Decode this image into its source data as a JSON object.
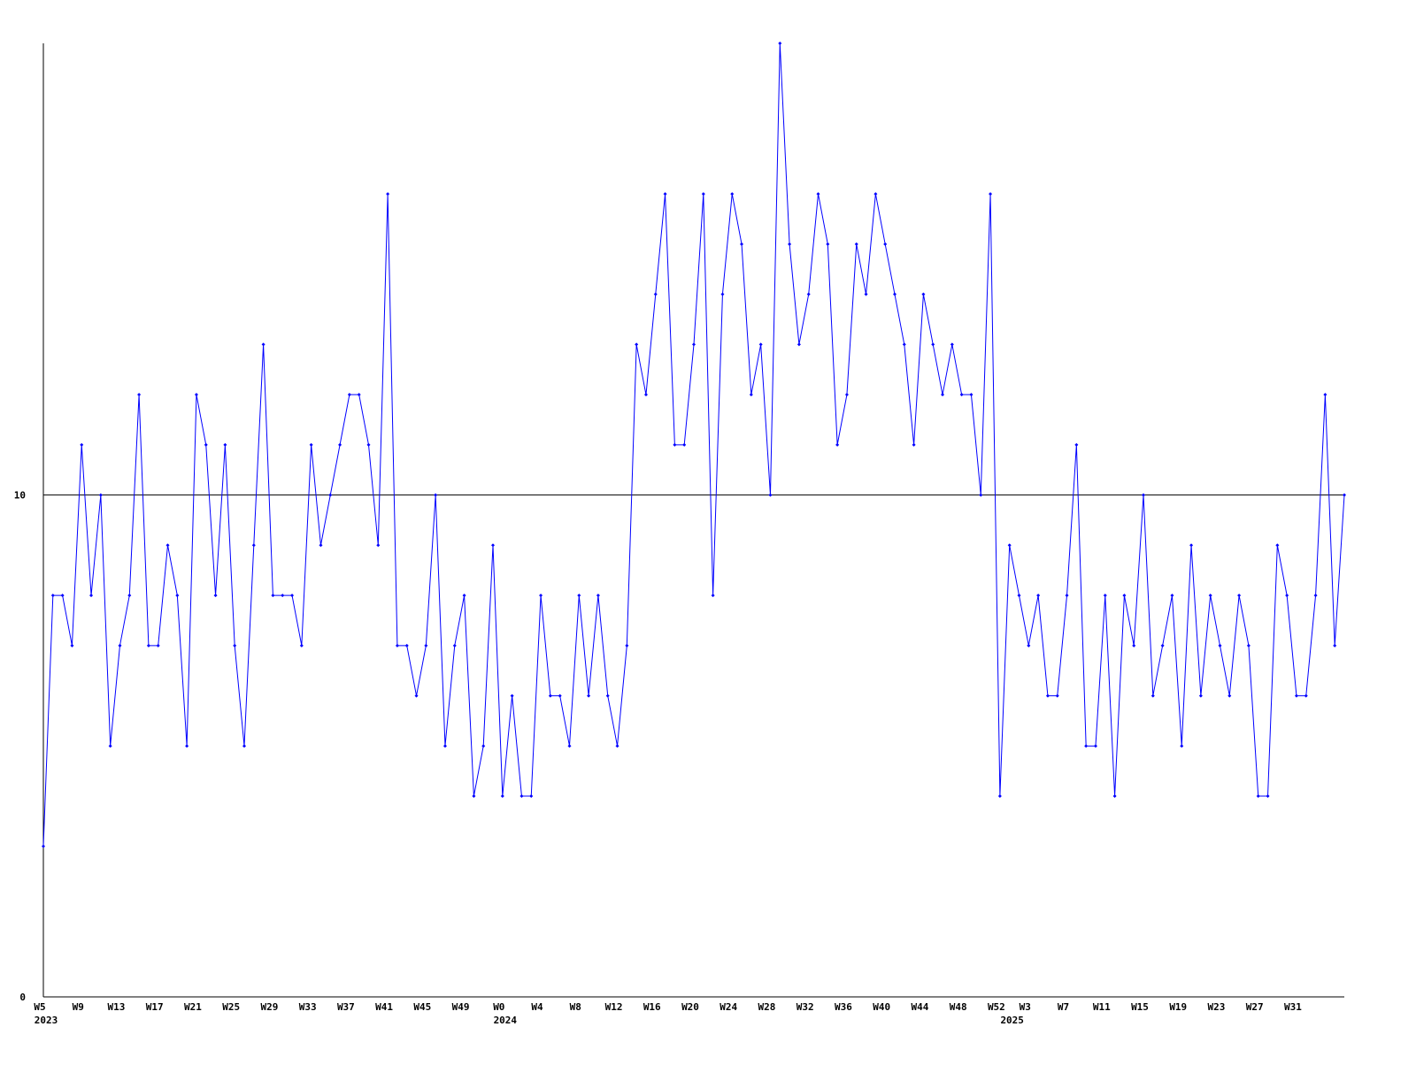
{
  "chart_data": {
    "type": "line",
    "categories": [
      "W5",
      null,
      null,
      null,
      "W9",
      null,
      null,
      null,
      "W13",
      null,
      null,
      null,
      "W17",
      null,
      null,
      null,
      "W21",
      null,
      null,
      null,
      "W25",
      null,
      null,
      null,
      "W29",
      null,
      null,
      null,
      "W33",
      null,
      null,
      null,
      "W37",
      null,
      null,
      null,
      "W41",
      null,
      null,
      null,
      "W45",
      null,
      null,
      null,
      "W49",
      null,
      null,
      null,
      "W0",
      null,
      null,
      null,
      "W4",
      null,
      null,
      null,
      "W8",
      null,
      null,
      null,
      "W12",
      null,
      null,
      null,
      "W16",
      null,
      null,
      null,
      "W20",
      null,
      null,
      null,
      "W24",
      null,
      null,
      null,
      "W28",
      null,
      null,
      null,
      "W32",
      null,
      null,
      null,
      "W36",
      null,
      null,
      null,
      "W40",
      null,
      null,
      null,
      "W44",
      null,
      null,
      null,
      "W48",
      null,
      null,
      null,
      "W52",
      null,
      null,
      "W3",
      null,
      null,
      null,
      "W7",
      null,
      null,
      null,
      "W11",
      null,
      null,
      null,
      "W15",
      null,
      null,
      null,
      "W19",
      null,
      null,
      null,
      "W23",
      null,
      null,
      null,
      "W27",
      null,
      null,
      null,
      "W31",
      null,
      null,
      null,
      null,
      null
    ],
    "category_groups": [
      "2023",
      null,
      null,
      null,
      null,
      null,
      null,
      null,
      null,
      null,
      null,
      null,
      null,
      null,
      null,
      null,
      null,
      null,
      null,
      null,
      null,
      null,
      null,
      null,
      null,
      null,
      null,
      null,
      null,
      null,
      null,
      null,
      null,
      null,
      null,
      null,
      null,
      null,
      null,
      null,
      null,
      null,
      null,
      null,
      null,
      null,
      null,
      null,
      "2024",
      null,
      null,
      null,
      null,
      null,
      null,
      null,
      null,
      null,
      null,
      null,
      null,
      null,
      null,
      null,
      null,
      null,
      null,
      null,
      null,
      null,
      null,
      null,
      null,
      null,
      null,
      null,
      null,
      null,
      null,
      null,
      null,
      null,
      null,
      null,
      null,
      null,
      null,
      null,
      null,
      null,
      null,
      null,
      null,
      null,
      null,
      null,
      null,
      null,
      null,
      null,
      null,
      "2025",
      null,
      null,
      null,
      null,
      null,
      null,
      null,
      null,
      null,
      null,
      null,
      null,
      null,
      null,
      null,
      null,
      null,
      null,
      null,
      null,
      null,
      null,
      null,
      null,
      null,
      null,
      null,
      null,
      null,
      null,
      null,
      null,
      null,
      null
    ],
    "series": [
      {
        "color": "#0000ff",
        "values": [
          3,
          8,
          8,
          7,
          11,
          8,
          10,
          5,
          7,
          8,
          12,
          7,
          7,
          9,
          8,
          5,
          12,
          11,
          8,
          11,
          7,
          5,
          9,
          13,
          8,
          8,
          8,
          7,
          11,
          9,
          10,
          11,
          12,
          12,
          11,
          9,
          16,
          7,
          7,
          6,
          7,
          10,
          5,
          7,
          8,
          4,
          5,
          9,
          4,
          6,
          4,
          4,
          8,
          6,
          6,
          5,
          8,
          6,
          8,
          6,
          5,
          7,
          13,
          12,
          14,
          16,
          11,
          11,
          13,
          16,
          8,
          14,
          16,
          15,
          12,
          13,
          10,
          19,
          15,
          13,
          14,
          16,
          15,
          11,
          12,
          15,
          14,
          16,
          15,
          14,
          13,
          11,
          14,
          13,
          12,
          13,
          12,
          12,
          10,
          16,
          4,
          9,
          8,
          7,
          8,
          6,
          6,
          8,
          11,
          5,
          5,
          8,
          4,
          8,
          7,
          10,
          6,
          7,
          8,
          5,
          9,
          6,
          8,
          7,
          6,
          8,
          7,
          4,
          4,
          9,
          8,
          6,
          6,
          8,
          12,
          7,
          10
        ]
      }
    ],
    "ylim": [
      0,
      19
    ],
    "yticks": [
      0,
      10
    ],
    "grid": true,
    "axis_color": "#000000"
  }
}
